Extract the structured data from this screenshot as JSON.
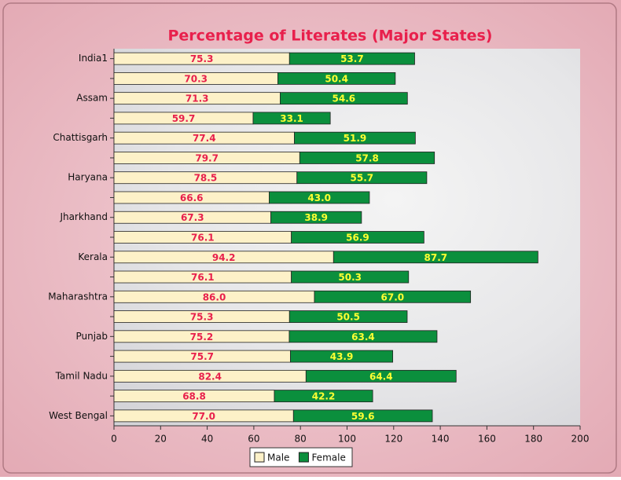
{
  "chart_data": {
    "type": "stacked-bar-horizontal",
    "title": "Percentage of Literates (Major States)",
    "categories": [
      "India1",
      null,
      "Assam",
      null,
      "Chattisgarh",
      null,
      "Haryana",
      null,
      "Jharkhand",
      null,
      "Kerala",
      null,
      "Maharashtra",
      null,
      "Punjab",
      null,
      "Tamil Nadu",
      null,
      "West Bengal"
    ],
    "series": [
      {
        "name": "Male",
        "color": "#fdf1c8",
        "label_color": "#e8204c",
        "values": [
          75.3,
          70.3,
          71.3,
          59.7,
          77.4,
          79.7,
          78.5,
          66.6,
          67.3,
          76.1,
          94.2,
          76.1,
          86.0,
          75.3,
          75.2,
          75.7,
          82.4,
          68.8,
          77.0
        ],
        "value_labels": [
          "75.3",
          "70.3",
          "71.3",
          "59.7",
          "77.4",
          "79.7",
          "78.5",
          "66.6",
          "67.3",
          "76.1",
          "94.2",
          "76.1",
          "86.0",
          "75.3",
          "75.2",
          "75.7",
          "82.4",
          "68.8",
          "77.0"
        ]
      },
      {
        "name": "Female",
        "color": "#0b8f3d",
        "label_color": "#ffff33",
        "values": [
          53.7,
          50.4,
          54.6,
          33.1,
          51.9,
          57.8,
          55.7,
          43.0,
          38.9,
          56.9,
          87.7,
          50.3,
          67.0,
          50.5,
          63.4,
          43.9,
          64.4,
          42.2,
          59.6
        ],
        "value_labels": [
          "53.7",
          "50.4",
          "54.6",
          "33.1",
          "51.9",
          "57.8",
          "55.7",
          "43.0",
          "38.9",
          "56.9",
          "87.7",
          "50.3",
          "67.0",
          "50.5",
          "63.4",
          "43.9",
          "64.4",
          "42.2",
          "59.6"
        ]
      }
    ],
    "xlim": [
      0,
      200
    ],
    "xticks": [
      0,
      20,
      40,
      60,
      80,
      100,
      120,
      140,
      160,
      180,
      200
    ],
    "legend": "bottom"
  }
}
